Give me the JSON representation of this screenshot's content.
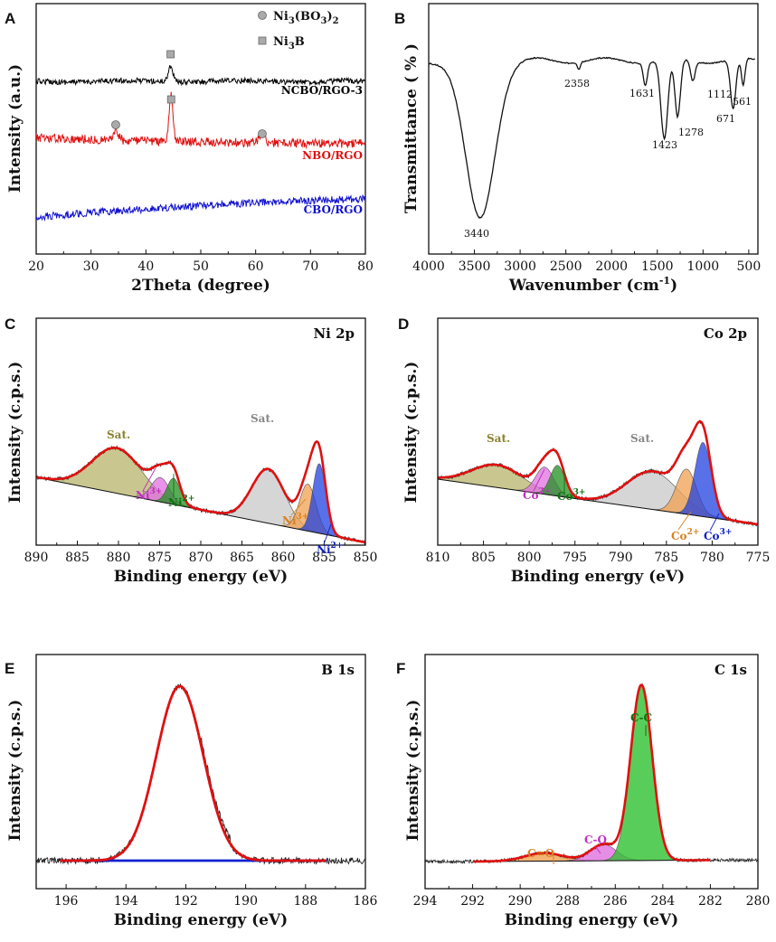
{
  "chart_data": [
    {
      "id": "A",
      "type": "line",
      "title": "",
      "xlabel": "2Theta (degree)",
      "ylabel": "Intensity (a.u.)",
      "xlim": [
        20,
        80
      ],
      "xticks": [
        20,
        30,
        40,
        50,
        60,
        70,
        80
      ],
      "legend": [
        {
          "marker": "circle",
          "label": "Ni3(BO3)2",
          "html": "Ni<tspan dy='4' font-size='10'>3</tspan><tspan dy='-4'>(BO</tspan><tspan dy='4' font-size='10'>3</tspan><tspan dy='-4'>)</tspan><tspan dy='4' font-size='10'>2</tspan>"
        },
        {
          "marker": "square",
          "label": "Ni3B",
          "html": "Ni<tspan dy='4' font-size='10'>3</tspan><tspan dy='-4'>B</tspan>"
        }
      ],
      "series": [
        {
          "name": "NCBO/RGO-3",
          "color": "#000000",
          "peaks": [
            {
              "x": 44.5,
              "marker": "square"
            }
          ]
        },
        {
          "name": "NBO/RGO",
          "color": "#e01010",
          "peaks": [
            {
              "x": 34.5,
              "marker": "circle"
            },
            {
              "x": 44.6,
              "marker": "square"
            },
            {
              "x": 61.2,
              "marker": "circle"
            }
          ]
        },
        {
          "name": "CBO/RGO",
          "color": "#1010d0",
          "peaks": []
        }
      ]
    },
    {
      "id": "B",
      "type": "line",
      "title": "",
      "xlabel": "Wavenumber (cm-1)",
      "ylabel": "Transmittance ( % )",
      "xlim": [
        4000,
        400
      ],
      "xticks": [
        4000,
        3500,
        3000,
        2500,
        2000,
        1500,
        1000,
        500
      ],
      "peak_labels": [
        3440,
        2358,
        1631,
        1423,
        1278,
        1112,
        671,
        561
      ]
    },
    {
      "id": "C",
      "type": "area",
      "title": "Ni 2p",
      "xlabel": "Binding energy (eV)",
      "ylabel": "Intensity (c.p.s.)",
      "xlim": [
        890,
        850
      ],
      "xticks": [
        890,
        885,
        880,
        875,
        870,
        865,
        860,
        855,
        850
      ],
      "components": [
        {
          "label": "Sat.",
          "center": 880.2,
          "color": "#b7b46a"
        },
        {
          "label": "Ni3+",
          "center": 874.9,
          "color": "#e070e0"
        },
        {
          "label": "Ni2+",
          "center": 873.3,
          "color": "#209020"
        },
        {
          "label": "Sat.",
          "center": 861.8,
          "color": "#c8c8c8"
        },
        {
          "label": "Ni3+",
          "center": 857.0,
          "color": "#f0a050"
        },
        {
          "label": "Ni2+",
          "center": 855.6,
          "color": "#2040e0"
        }
      ]
    },
    {
      "id": "D",
      "type": "area",
      "title": "Co 2p",
      "xlabel": "Binding energy (eV)",
      "ylabel": "Intensity (c.p.s.)",
      "xlim": [
        810,
        775
      ],
      "xticks": [
        810,
        805,
        800,
        795,
        790,
        785,
        780,
        775
      ],
      "components": [
        {
          "label": "Sat.",
          "center": 803.5,
          "color": "#b7b46a"
        },
        {
          "label": "Co2+",
          "center": 798.3,
          "color": "#e070e0"
        },
        {
          "label": "Co3+",
          "center": 796.9,
          "color": "#209020"
        },
        {
          "label": "Sat.",
          "center": 786.5,
          "color": "#c8c8c8"
        },
        {
          "label": "Co2+",
          "center": 782.8,
          "color": "#f0a050"
        },
        {
          "label": "Co3+",
          "center": 781.0,
          "color": "#2040e0"
        }
      ]
    },
    {
      "id": "E",
      "type": "line",
      "title": "B 1s",
      "xlabel": "Binding energy (eV)",
      "ylabel": "Intensity (c.p.s.)",
      "xlim": [
        197,
        186
      ],
      "xticks": [
        196,
        194,
        192,
        190,
        188,
        186
      ],
      "peak_center": 192.2
    },
    {
      "id": "F",
      "type": "area",
      "title": "C 1s",
      "xlabel": "Binding energy (eV)",
      "ylabel": "Intensity (c.p.s.)",
      "xlim": [
        294,
        280
      ],
      "xticks": [
        294,
        292,
        290,
        288,
        286,
        284,
        282,
        280
      ],
      "components": [
        {
          "label": "C=O",
          "center": 289.0,
          "color": "#f0a050"
        },
        {
          "label": "C-O",
          "center": 286.5,
          "color": "#e070e0"
        },
        {
          "label": "C-C",
          "center": 284.9,
          "color": "#30c030"
        }
      ]
    }
  ]
}
